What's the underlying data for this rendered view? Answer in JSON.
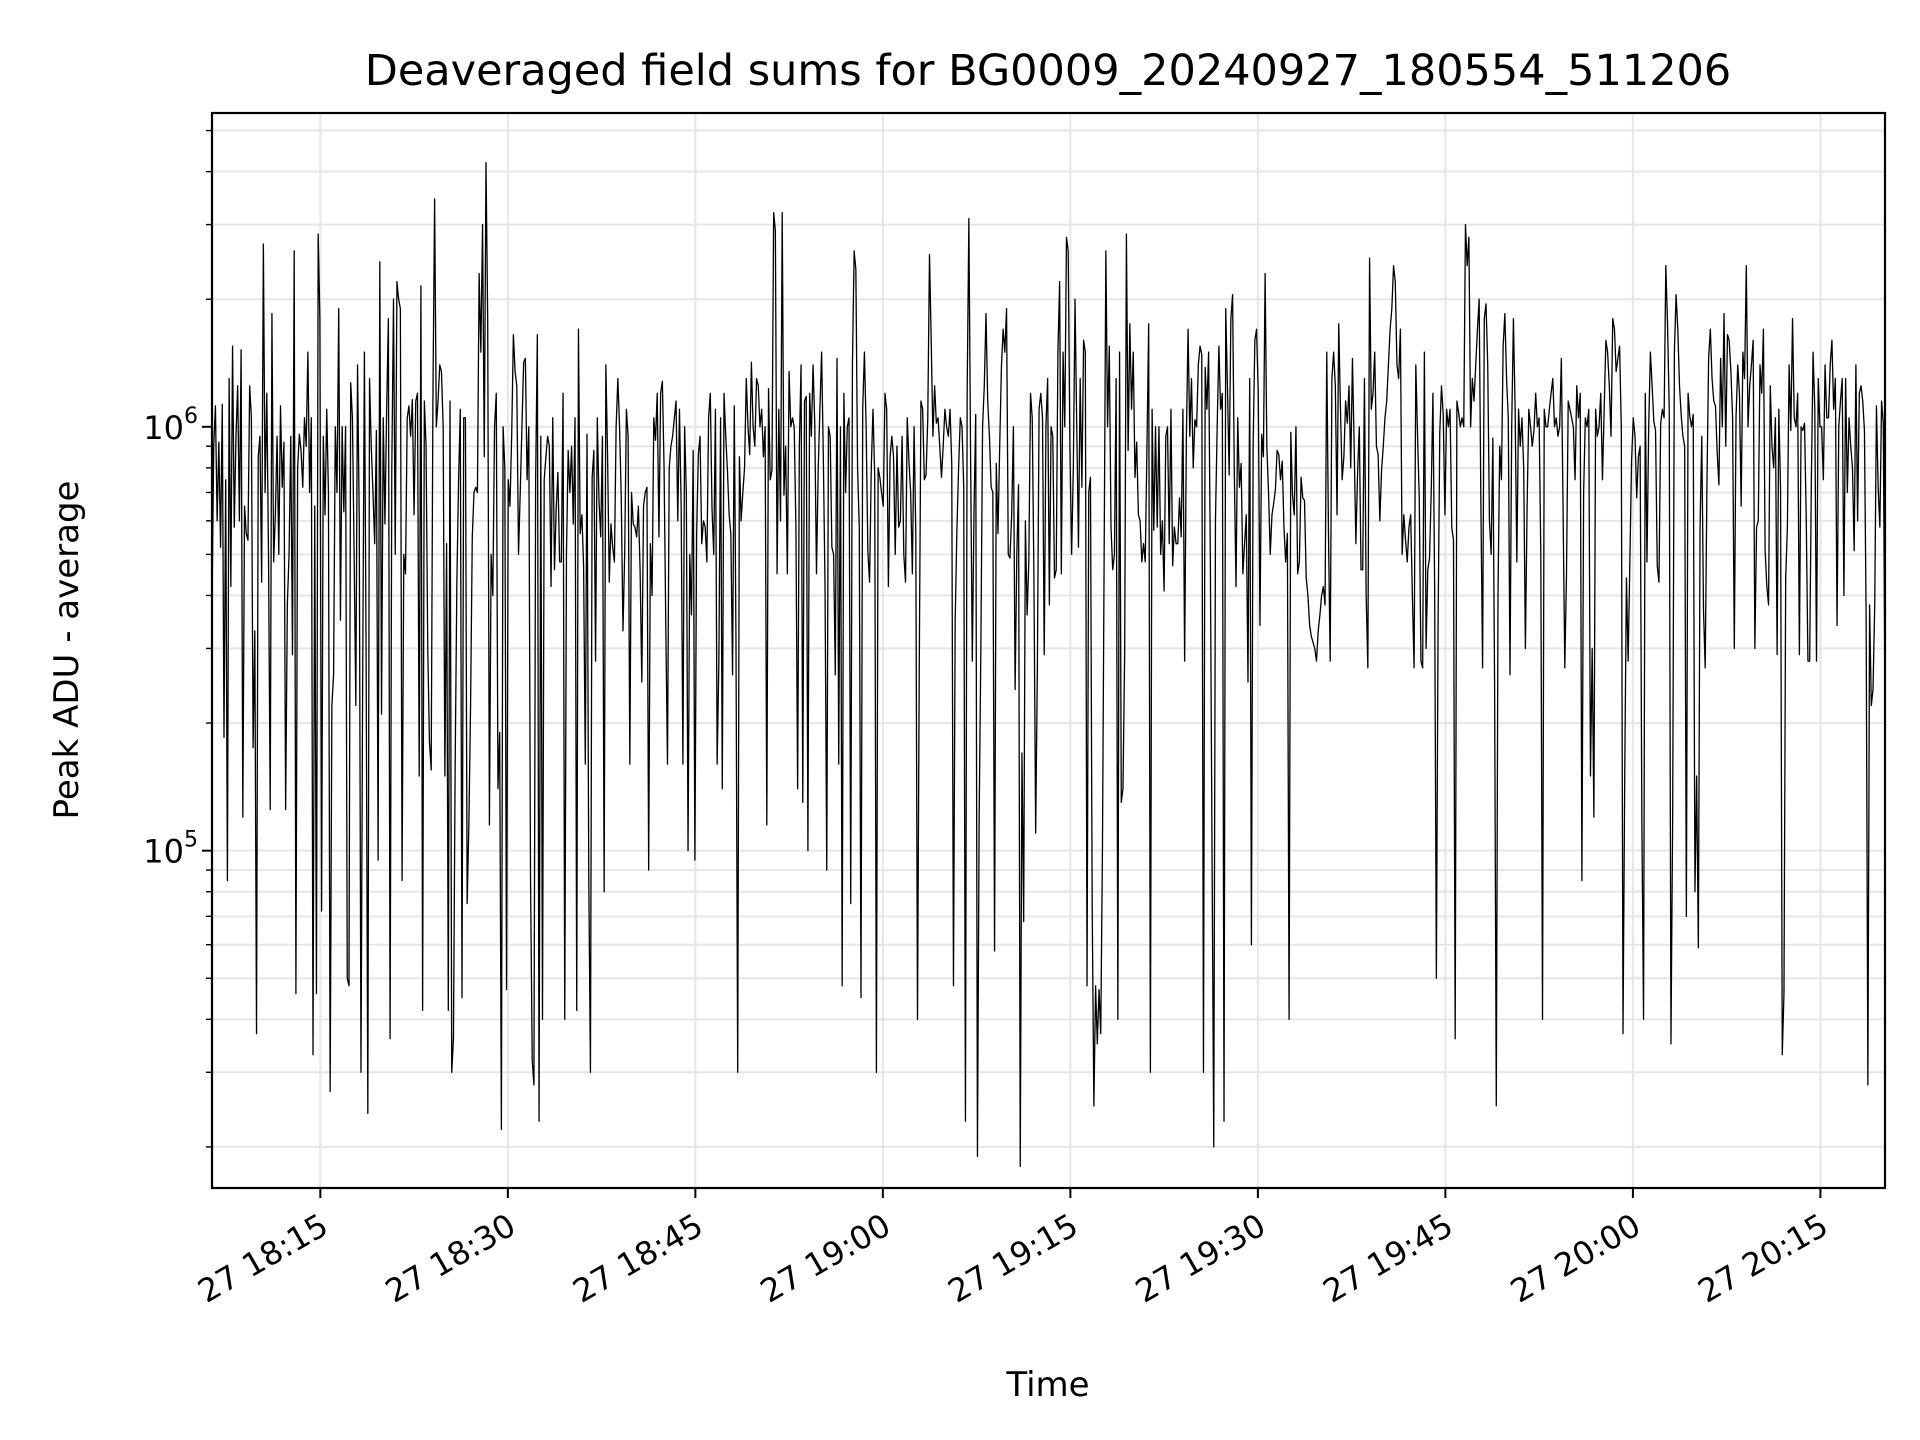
{
  "chart_data": {
    "type": "line",
    "title": "Deaveraged field sums for BG0009_20240927_180554_511206",
    "xlabel": "Time",
    "ylabel": "Peak ADU - average",
    "y_scale": "log",
    "ylim": [
      16000,
      5500000
    ],
    "xlim": [
      "27 18:06:20",
      "27 20:20:10"
    ],
    "grid": true,
    "line_color": "#000000",
    "x_tick_labels": [
      "27 18:15",
      "27 18:30",
      "27 18:45",
      "27 19:00",
      "27 19:15",
      "27 19:30",
      "27 19:45",
      "27 20:00",
      "27 20:15"
    ],
    "x_ticks": [
      "27 18:15",
      "27 18:30",
      "27 18:45",
      "27 19:00",
      "27 19:15",
      "27 19:30",
      "27 19:45",
      "27 20:00",
      "27 20:15"
    ],
    "y_ticks": [
      100000,
      1000000
    ],
    "y_tick_labels": [
      {
        "base": "10",
        "exp": "5"
      },
      {
        "base": "10",
        "exp": "6"
      }
    ],
    "series": [
      {
        "x_start": "27 18:06:20",
        "x_end": "27 20:20:10",
        "values": [
          370000,
          900000,
          1120000,
          600000,
          920000,
          520000,
          1130000,
          185000,
          750000,
          85000,
          1300000,
          420000,
          1550000,
          580000,
          950000,
          1250000,
          600000,
          1520000,
          120000,
          650000,
          560000,
          540000,
          1250000,
          1050000,
          175000,
          330000,
          37000,
          850000,
          950000,
          430000,
          2700000,
          700000,
          1200000,
          500000,
          125000,
          1850000,
          480000,
          620000,
          950000,
          500000,
          1120000,
          720000,
          920000,
          125000,
          380000,
          500000,
          950000,
          290000,
          2600000,
          46000,
          800000,
          960000,
          880000,
          720000,
          1050000,
          900000,
          1500000,
          700000,
          1050000,
          33000,
          650000,
          46000,
          2850000,
          1800000,
          72000,
          950000,
          620000,
          1100000,
          700000,
          27000,
          220000,
          260000,
          1000000,
          700000,
          1900000,
          350000,
          1000000,
          630000,
          1000000,
          50000,
          48000,
          1270000,
          1050000,
          500000,
          220000,
          1400000,
          600000,
          30000,
          260000,
          1500000,
          290000,
          24000,
          1300000,
          900000,
          700000,
          530000,
          980000,
          95000,
          2450000,
          210000,
          1050000,
          590000,
          1100000,
          1800000,
          36000,
          800000,
          2000000,
          500000,
          2200000,
          2000000,
          1900000,
          85000,
          500000,
          450000,
          1050000,
          1120000,
          950000,
          1160000,
          620000,
          1150000,
          1200000,
          150000,
          2150000,
          42000,
          1150000,
          900000,
          300000,
          180000,
          155000,
          1150000,
          3450000,
          1000000,
          1150000,
          1400000,
          1350000,
          1000000,
          150000,
          530000,
          42000,
          1150000,
          30000,
          36000,
          160000,
          430000,
          750000,
          1100000,
          45000,
          1050000,
          1050000,
          75000,
          115000,
          220000,
          550000,
          700000,
          720000,
          700000,
          2300000,
          1500000,
          3000000,
          850000,
          4200000,
          1800000,
          115000,
          500000,
          400000,
          1000000,
          1200000,
          140000,
          190000,
          22000,
          1000000,
          800000,
          47000,
          750000,
          650000,
          950000,
          1650000,
          1350000,
          1250000,
          500000,
          700000,
          1000000,
          1420000,
          1450000,
          750000,
          1000000,
          88000,
          32000,
          28000,
          750000,
          1650000,
          23000,
          950000,
          40000,
          750000,
          850000,
          950000,
          900000,
          420000,
          1050000,
          460000,
          640000,
          780000,
          480000,
          480000,
          1200000,
          40000,
          500000,
          880000,
          700000,
          900000,
          590000,
          1050000,
          42000,
          1700000,
          560000,
          620000,
          470000,
          160000,
          960000,
          90000,
          30000,
          760000,
          880000,
          280000,
          1050000,
          670000,
          550000,
          950000,
          80000,
          1400000,
          860000,
          430000,
          590000,
          520000,
          480000,
          1000000,
          1300000,
          1000000,
          680000,
          330000,
          500000,
          1100000,
          950000,
          160000,
          700000,
          590000,
          580000,
          550000,
          650000,
          460000,
          250000,
          650000,
          700000,
          720000,
          90000,
          530000,
          400000,
          1050000,
          930000,
          1200000,
          550000,
          1200000,
          1280000,
          800000,
          340000,
          160000,
          800000,
          900000,
          950000,
          1050000,
          1150000,
          600000,
          1100000,
          640000,
          160000,
          1000000,
          700000,
          100000,
          500000,
          360000,
          880000,
          95000,
          550000,
          860000,
          950000,
          530000,
          600000,
          580000,
          480000,
          1050000,
          1200000,
          640000,
          500000,
          1100000,
          160000,
          280000,
          1050000,
          140000,
          1200000,
          950000,
          790000,
          620000,
          560000,
          260000,
          1120000,
          310000,
          30000,
          850000,
          600000,
          700000,
          800000,
          1300000,
          1000000,
          860000,
          1420000,
          1000000,
          900000,
          1300000,
          1250000,
          1000000,
          1100000,
          850000,
          1000000,
          115000,
          1230000,
          750000,
          790000,
          3200000,
          2900000,
          450000,
          1100000,
          600000,
          3200000,
          690000,
          900000,
          450000,
          1350000,
          1000000,
          1050000,
          1000000,
          580000,
          140000,
          900000,
          1400000,
          130000,
          1150000,
          1180000,
          100000,
          1200000,
          950000,
          1400000,
          1020000,
          450000,
          790000,
          1100000,
          1500000,
          850000,
          420000,
          90000,
          1000000,
          950000,
          520000,
          500000,
          260000,
          1450000,
          160000,
          1000000,
          48000,
          1200000,
          700000,
          1000000,
          1050000,
          75000,
          1400000,
          2600000,
          2350000,
          800000,
          580000,
          45000,
          1100000,
          1500000,
          1000000,
          510000,
          430000,
          800000,
          1100000,
          770000,
          30000,
          800000,
          760000,
          700000,
          650000,
          1200000,
          1100000,
          420000,
          850000,
          950000,
          850000,
          500000,
          900000,
          580000,
          600000,
          950000,
          500000,
          430000,
          1050000,
          830000,
          700000,
          450000,
          1000000,
          560000,
          40000,
          260000,
          1150000,
          1100000,
          750000,
          770000,
          1050000,
          2550000,
          1600000,
          950000,
          1250000,
          1020000,
          1050000,
          900000,
          760000,
          900000,
          1100000,
          1000000,
          950000,
          1100000,
          820000,
          48000,
          350000,
          570000,
          800000,
          1050000,
          1000000,
          720000,
          23000,
          1200000,
          3100000,
          850000,
          280000,
          630000,
          1070000,
          19000,
          120000,
          300000,
          1000000,
          1250000,
          1850000,
          1150000,
          950000,
          720000,
          700000,
          58000,
          820000,
          560000,
          900000,
          1380000,
          1700000,
          1500000,
          1900000,
          500000,
          490000,
          620000,
          1000000,
          240000,
          500000,
          730000,
          18000,
          170000,
          68000,
          600000,
          360000,
          480000,
          1200000,
          1050000,
          440000,
          110000,
          270000,
          1100000,
          1200000,
          1050000,
          290000,
          1000000,
          1300000,
          380000,
          1000000,
          950000,
          440000,
          460000,
          1500000,
          2200000,
          450000,
          1500000,
          1000000,
          2800000,
          2600000,
          900000,
          500000,
          800000,
          2000000,
          1000000,
          520000,
          1300000,
          720000,
          1600000,
          1500000,
          48000,
          700000,
          760000,
          75000,
          25000,
          48000,
          35000,
          47000,
          37000,
          100000,
          500000,
          2600000,
          1000000,
          1550000,
          580000,
          460000,
          500000,
          1300000,
          40000,
          1500000,
          130000,
          140000,
          300000,
          2850000,
          880000,
          1750000,
          1100000,
          1500000,
          760000,
          920000,
          620000,
          600000,
          480000,
          530000,
          480000,
          900000,
          1750000,
          30000,
          1100000,
          570000,
          1000000,
          580000,
          1000000,
          500000,
          600000,
          410000,
          950000,
          1000000,
          530000,
          1100000,
          470000,
          580000,
          530000,
          530000,
          680000,
          550000,
          1100000,
          280000,
          940000,
          1700000,
          950000,
          1300000,
          800000,
          1040000,
          1000000,
          1400000,
          1550000,
          1480000,
          30000,
          1380000,
          1100000,
          1500000,
          500000,
          100000,
          20000,
          600000,
          1000000,
          1550000,
          1100000,
          1200000,
          23000,
          1900000,
          1250000,
          770000,
          1800000,
          2050000,
          790000,
          420000,
          1050000,
          720000,
          820000,
          450000,
          530000,
          620000,
          250000,
          1300000,
          60000,
          900000,
          1600000,
          1700000,
          1200000,
          340000,
          960000,
          850000,
          2300000,
          900000,
          700000,
          500000,
          620000,
          660000,
          710000,
          880000,
          860000,
          750000,
          830000,
          580000,
          480000,
          560000,
          40000,
          970000,
          690000,
          620000,
          1000000,
          450000,
          480000,
          760000,
          680000,
          670000,
          440000,
          400000,
          340000,
          320000,
          310000,
          300000,
          280000,
          330000,
          360000,
          400000,
          420000,
          380000,
          1500000,
          560000,
          280000,
          1300000,
          1500000,
          1250000,
          620000,
          1750000,
          1100000,
          750000,
          850000,
          1150000,
          1020000,
          1250000,
          800000,
          1450000,
          900000,
          530000,
          780000,
          1000000,
          460000,
          460000,
          1300000,
          400000,
          270000,
          2500000,
          1100000,
          1200000,
          1500000,
          900000,
          860000,
          600000,
          790000,
          900000,
          1050000,
          1150000,
          1400000,
          1700000,
          1900000,
          2400000,
          2200000,
          1400000,
          1300000,
          1700000,
          500000,
          620000,
          540000,
          480000,
          580000,
          620000,
          400000,
          270000,
          1400000,
          960000,
          680000,
          280000,
          270000,
          1500000,
          300000,
          460000,
          490000,
          700000,
          1200000,
          420000,
          50000,
          340000,
          970000,
          1250000,
          1070000,
          620000,
          1100000,
          1000000,
          1100000,
          580000,
          540000,
          36000,
          1150000,
          1080000,
          1000000,
          1050000,
          1000000,
          3000000,
          2400000,
          2800000,
          1000000,
          1300000,
          1150000,
          1400000,
          1700000,
          2000000,
          660000,
          270000,
          1800000,
          1950000,
          1400000,
          600000,
          500000,
          940000,
          250000,
          25000,
          400000,
          900000,
          750000,
          1550000,
          1850000,
          1300000,
          1050000,
          260000,
          1000000,
          1800000,
          1100000,
          480000,
          1100000,
          900000,
          1050000,
          800000,
          300000,
          650000,
          1100000,
          1000000,
          900000,
          980000,
          1200000,
          1000000,
          1050000,
          500000,
          40000,
          1100000,
          1000000,
          1000000,
          1100000,
          1200000,
          1300000,
          1000000,
          1050000,
          950000,
          1000000,
          1450000,
          640000,
          270000,
          450000,
          1150000,
          1100000,
          1050000,
          1000000,
          750000,
          1250000,
          1050000,
          1200000,
          85000,
          700000,
          1050000,
          1000000,
          1100000,
          150000,
          300000,
          120000,
          1100000,
          950000,
          1000000,
          1200000,
          750000,
          1100000,
          1600000,
          1500000,
          1250000,
          950000,
          1800000,
          1700000,
          1350000,
          1450000,
          1550000,
          1000000,
          37000,
          150000,
          440000,
          280000,
          480000,
          830000,
          1050000,
          950000,
          680000,
          850000,
          900000,
          120000,
          40000,
          1200000,
          480000,
          1000000,
          1500000,
          1250000,
          1030000,
          980000,
          470000,
          430000,
          1020000,
          1100000,
          1050000,
          2400000,
          1750000,
          1100000,
          35000,
          120000,
          1500000,
          2050000,
          1700000,
          1250000,
          1060000,
          950000,
          900000,
          70000,
          1200000,
          1060000,
          1000000,
          1070000,
          80000,
          150000,
          59000,
          580000,
          950000,
          370000,
          270000,
          720000,
          1450000,
          1700000,
          1300000,
          1150000,
          1120000,
          870000,
          730000,
          1450000,
          1000000,
          1850000,
          900000,
          1650000,
          1600000,
          1350000,
          1050000,
          300000,
          1050000,
          1400000,
          1200000,
          650000,
          1500000,
          1300000,
          2400000,
          1000000,
          1250000,
          1400000,
          1600000,
          300000,
          580000,
          600000,
          1400000,
          1200000,
          1700000,
          510000,
          420000,
          380000,
          1250000,
          900000,
          800000,
          1050000,
          290000,
          1100000,
          720000,
          33000,
          46000,
          440000,
          580000,
          1400000,
          980000,
          1800000,
          1050000,
          1000000,
          1200000,
          290000,
          1000000,
          980000,
          1020000,
          610000,
          280000,
          280000,
          750000,
          1500000,
          1100000,
          280000,
          1300000,
          1000000,
          1000000,
          750000,
          1400000,
          1050000,
          1050000,
          1400000,
          1600000,
          1100000,
          1300000,
          340000,
          1000000,
          1150000,
          1300000,
          400000,
          1300000,
          700000,
          1050000,
          900000,
          800000,
          510000,
          1400000,
          600000,
          1200000,
          1250000,
          1150000,
          980000,
          350000,
          28000,
          380000,
          220000,
          240000,
          380000,
          1120000,
          720000,
          580000,
          1150000,
          1020000,
          220000
        ]
      }
    ]
  }
}
